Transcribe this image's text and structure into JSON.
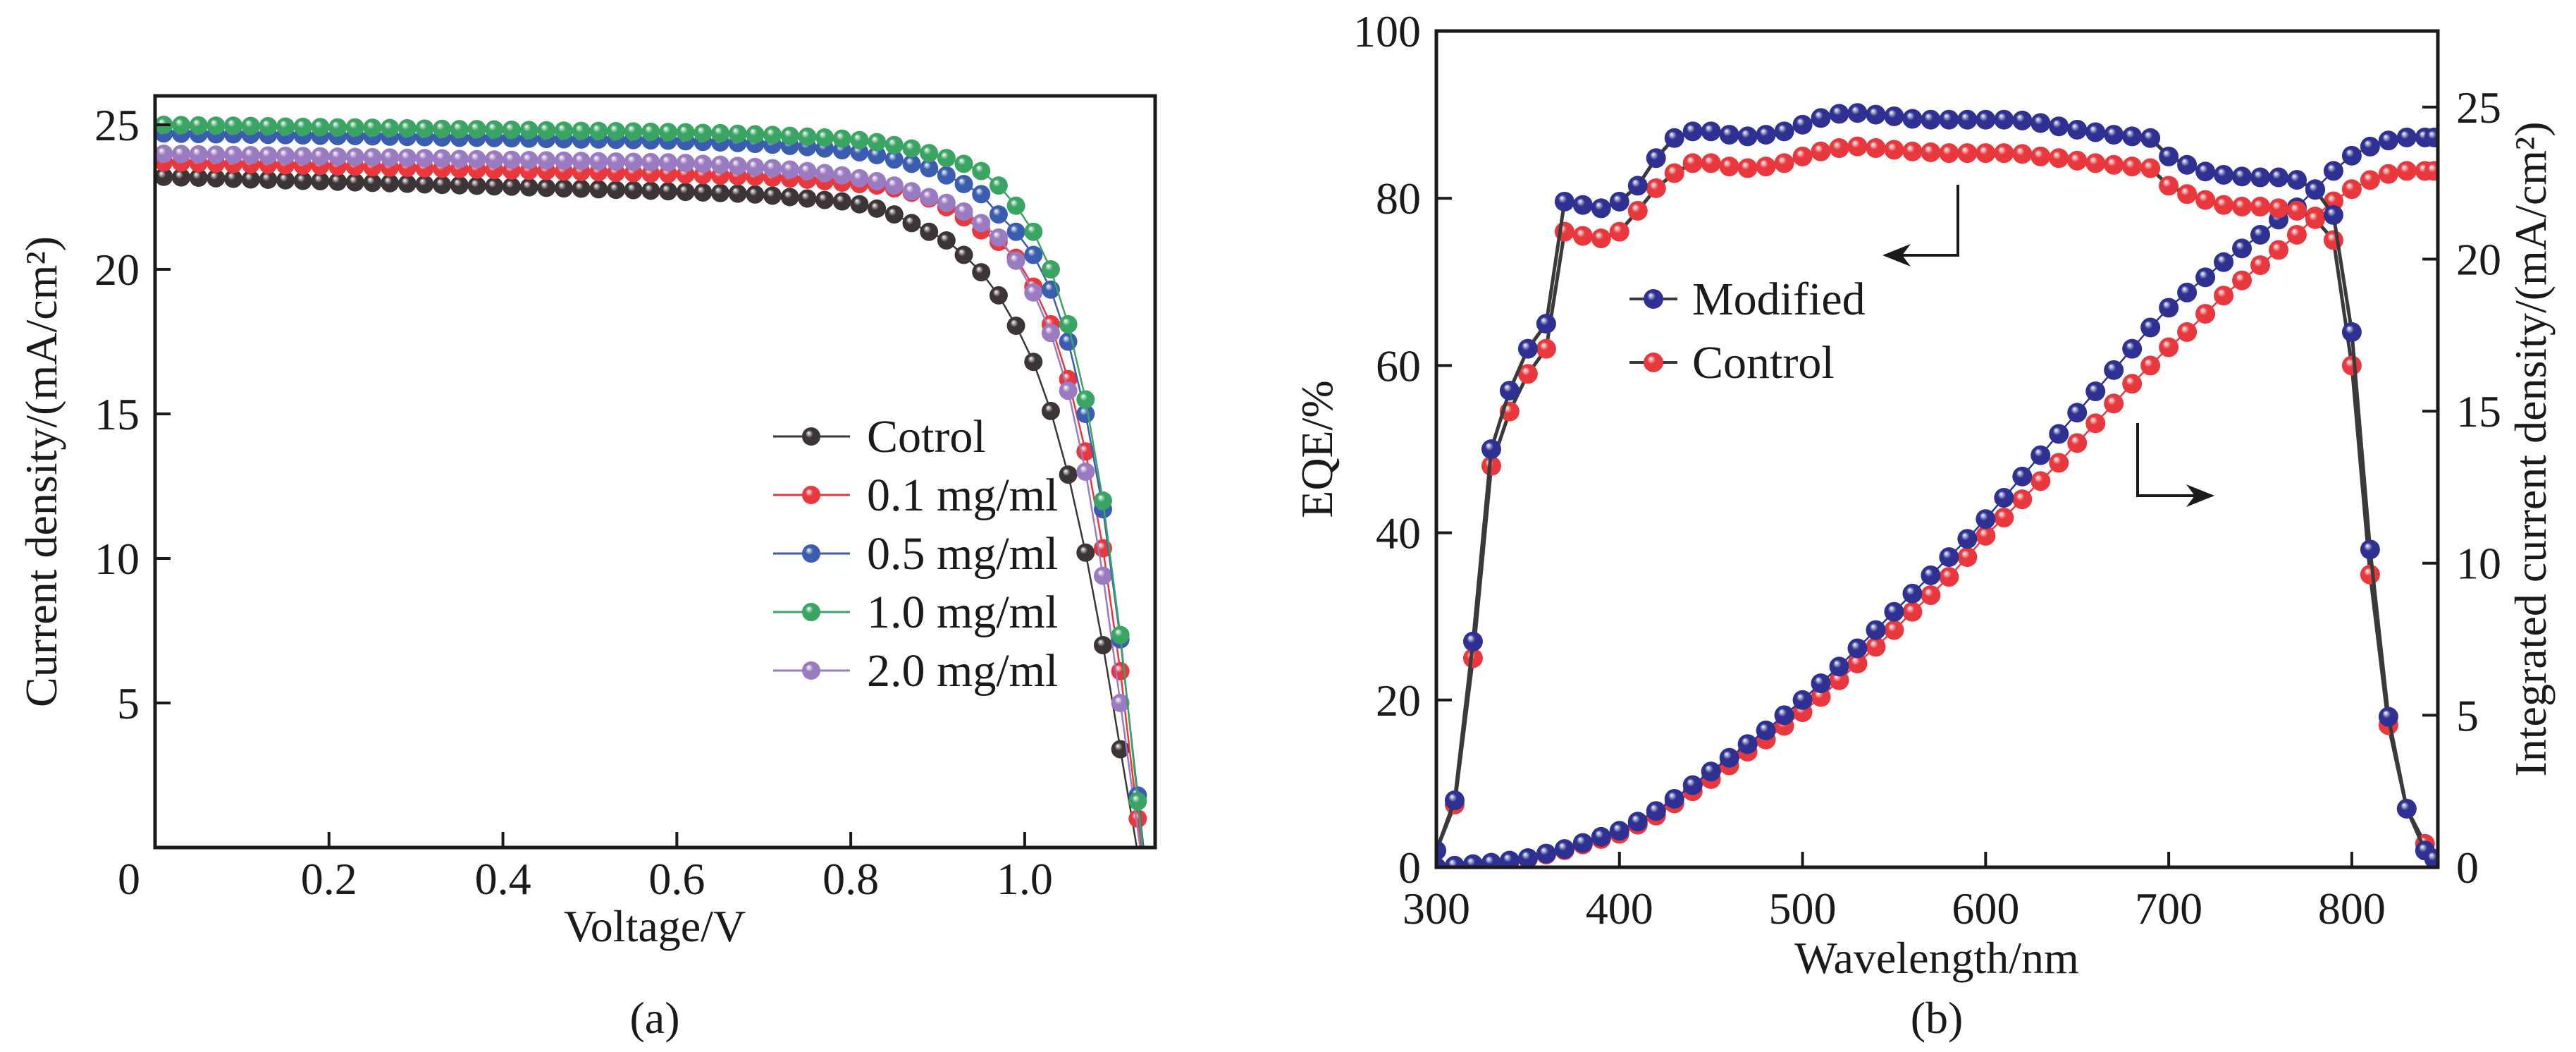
{
  "chart_data": [
    {
      "type": "line",
      "panel_label": "(a)",
      "title": "",
      "xlabel": "Voltage/V",
      "ylabel": "Current density/(mA/cm²)",
      "xlim": [
        0,
        1.15
      ],
      "ylim": [
        0,
        26
      ],
      "x_ticks": [
        0,
        0.2,
        0.4,
        0.6,
        0.8,
        1.0
      ],
      "x_tick_labels": [
        "0",
        "0.2",
        "0.4",
        "0.6",
        "0.8",
        "1.0"
      ],
      "y_ticks": [
        5,
        10,
        15,
        20,
        25
      ],
      "y_tick_labels": [
        "5",
        "10",
        "15",
        "20",
        "25"
      ],
      "grid": false,
      "legend_position": "center-right",
      "x": [
        0.01,
        0.03,
        0.05,
        0.07,
        0.09,
        0.11,
        0.13,
        0.15,
        0.17,
        0.19,
        0.21,
        0.23,
        0.25,
        0.27,
        0.29,
        0.31,
        0.33,
        0.35,
        0.37,
        0.39,
        0.41,
        0.43,
        0.45,
        0.47,
        0.49,
        0.51,
        0.53,
        0.55,
        0.57,
        0.59,
        0.61,
        0.63,
        0.65,
        0.67,
        0.69,
        0.71,
        0.73,
        0.75,
        0.77,
        0.79,
        0.81,
        0.83,
        0.85,
        0.87,
        0.89,
        0.91,
        0.93,
        0.95,
        0.97,
        0.99,
        1.01,
        1.03,
        1.05,
        1.07,
        1.09,
        1.11,
        1.13
      ],
      "series": [
        {
          "name": "Cotrol",
          "color": "#3d3535",
          "values": [
            23.2,
            23.18,
            23.17,
            23.15,
            23.13,
            23.11,
            23.1,
            23.08,
            23.06,
            23.05,
            23.03,
            23.01,
            22.99,
            22.98,
            22.96,
            22.94,
            22.92,
            22.91,
            22.89,
            22.87,
            22.86,
            22.84,
            22.82,
            22.8,
            22.79,
            22.77,
            22.75,
            22.74,
            22.72,
            22.7,
            22.68,
            22.66,
            22.64,
            22.62,
            22.59,
            22.55,
            22.5,
            22.45,
            22.4,
            22.35,
            22.25,
            22.1,
            21.9,
            21.6,
            21.3,
            21.0,
            20.5,
            19.9,
            19.1,
            18.05,
            16.8,
            15.1,
            12.9,
            10.2,
            7.0,
            3.4,
            null
          ]
        },
        {
          "name": "0.1 mg/ml",
          "color": "#e8383d",
          "values": [
            23.7,
            23.69,
            23.67,
            23.66,
            23.64,
            23.63,
            23.62,
            23.6,
            23.59,
            23.58,
            23.56,
            23.55,
            23.53,
            23.52,
            23.51,
            23.49,
            23.48,
            23.47,
            23.45,
            23.44,
            23.42,
            23.41,
            23.4,
            23.38,
            23.37,
            23.36,
            23.34,
            23.33,
            23.31,
            23.3,
            23.28,
            23.26,
            23.24,
            23.22,
            23.2,
            23.17,
            23.14,
            23.1,
            23.05,
            23.0,
            22.95,
            22.9,
            22.8,
            22.65,
            22.45,
            22.15,
            21.8,
            21.35,
            20.95,
            20.4,
            19.4,
            18.1,
            16.2,
            13.7,
            10.35,
            6.1,
            1.0
          ]
        },
        {
          "name": "0.5 mg/ml",
          "color": "#3a5db0",
          "values": [
            24.7,
            24.69,
            24.68,
            24.67,
            24.67,
            24.66,
            24.65,
            24.64,
            24.63,
            24.62,
            24.61,
            24.61,
            24.6,
            24.59,
            24.58,
            24.57,
            24.56,
            24.55,
            24.55,
            24.54,
            24.53,
            24.52,
            24.51,
            24.5,
            24.49,
            24.49,
            24.48,
            24.47,
            24.46,
            24.45,
            24.43,
            24.41,
            24.39,
            24.37,
            24.34,
            24.31,
            24.27,
            24.23,
            24.18,
            24.12,
            24.05,
            23.95,
            23.8,
            23.65,
            23.5,
            23.25,
            22.95,
            22.6,
            21.9,
            21.3,
            20.5,
            19.3,
            17.5,
            15.0,
            11.7,
            7.2,
            1.8
          ]
        },
        {
          "name": "1.0 mg/ml",
          "color": "#3aa463",
          "values": [
            25.0,
            24.99,
            24.98,
            24.97,
            24.97,
            24.96,
            24.95,
            24.94,
            24.93,
            24.92,
            24.91,
            24.91,
            24.9,
            24.89,
            24.88,
            24.87,
            24.86,
            24.85,
            24.85,
            24.84,
            24.83,
            24.82,
            24.81,
            24.8,
            24.79,
            24.79,
            24.78,
            24.77,
            24.76,
            24.75,
            24.74,
            24.72,
            24.71,
            24.69,
            24.67,
            24.65,
            24.62,
            24.59,
            24.56,
            24.52,
            24.47,
            24.4,
            24.3,
            24.18,
            24.02,
            23.85,
            23.65,
            23.4,
            22.9,
            22.2,
            21.3,
            20.0,
            18.1,
            15.5,
            12.0,
            7.35,
            1.6
          ]
        },
        {
          "name": "2.0 mg/ml",
          "color": "#9a7ac0",
          "values": [
            24.0,
            23.99,
            23.98,
            23.97,
            23.96,
            23.95,
            23.94,
            23.93,
            23.92,
            23.91,
            23.9,
            23.89,
            23.88,
            23.87,
            23.86,
            23.85,
            23.84,
            23.82,
            23.81,
            23.8,
            23.79,
            23.78,
            23.77,
            23.76,
            23.75,
            23.74,
            23.73,
            23.72,
            23.71,
            23.7,
            23.68,
            23.65,
            23.62,
            23.58,
            23.54,
            23.5,
            23.45,
            23.4,
            23.33,
            23.25,
            23.15,
            23.05,
            22.9,
            22.7,
            22.5,
            22.3,
            22.0,
            21.6,
            21.1,
            20.3,
            19.2,
            17.8,
            15.8,
            13.0,
            9.4,
            5.0,
            null
          ]
        }
      ]
    },
    {
      "type": "line",
      "panel_label": "(b)",
      "title": "",
      "xlabel": "Wavelength/nm",
      "ylabel": "EQE/%",
      "ylabel_right": "Integrated current density/(mA/cm²)",
      "xlim": [
        300,
        847
      ],
      "ylim": [
        0,
        100
      ],
      "ylim_right": [
        0,
        27.5
      ],
      "x_ticks": [
        300,
        400,
        500,
        600,
        700,
        800
      ],
      "x_tick_labels": [
        "300",
        "400",
        "500",
        "600",
        "700",
        "800"
      ],
      "y_ticks": [
        0,
        20,
        40,
        60,
        80,
        100
      ],
      "y_tick_labels": [
        "0",
        "20",
        "40",
        "60",
        "80",
        "100"
      ],
      "y_ticks_right": [
        0,
        5,
        10,
        15,
        20,
        25
      ],
      "y_tick_labels_right": [
        "0",
        "5",
        "10",
        "15",
        "20",
        "25"
      ],
      "grid": false,
      "legend_position": "upper-left",
      "annotations": [
        "arrow pointing left to EQE axis",
        "arrow pointing right to integrated current axis"
      ],
      "x": [
        300,
        310,
        320,
        330,
        340,
        350,
        360,
        370,
        380,
        390,
        400,
        410,
        420,
        430,
        440,
        450,
        460,
        470,
        480,
        490,
        500,
        510,
        520,
        530,
        540,
        550,
        560,
        570,
        580,
        590,
        600,
        610,
        620,
        630,
        640,
        650,
        660,
        670,
        680,
        690,
        700,
        710,
        720,
        730,
        740,
        750,
        760,
        770,
        780,
        790,
        800,
        810,
        820,
        830,
        840,
        845
      ],
      "legend": [
        {
          "name": "Modified",
          "color": "#2e3192"
        },
        {
          "name": "Control",
          "color": "#e8383d"
        }
      ],
      "series": [
        {
          "name": "Modified",
          "quantity": "EQE",
          "axis": "left",
          "color": "#2e3192",
          "values": [
            2,
            8,
            27,
            50,
            57,
            62,
            65,
            79.6,
            79.2,
            78.8,
            79.6,
            81.5,
            84.8,
            87.2,
            88,
            88,
            87.6,
            87.4,
            87.6,
            88,
            88.8,
            89.6,
            90.1,
            90.2,
            90,
            89.8,
            89.5,
            89.4,
            89.4,
            89.4,
            89.4,
            89.4,
            89.3,
            89,
            88.6,
            88.2,
            87.9,
            87.6,
            87.4,
            87.2,
            85,
            84,
            83.2,
            82.8,
            82.6,
            82.5,
            82.5,
            82.2,
            81,
            78,
            64,
            38,
            18,
            7,
            2,
            1
          ]
        },
        {
          "name": "Control",
          "quantity": "EQE",
          "axis": "left",
          "color": "#e8383d",
          "values": [
            2,
            7.5,
            25,
            48,
            54.5,
            59,
            62,
            76,
            75.5,
            75.2,
            76,
            78.5,
            81.2,
            83,
            84.2,
            84.2,
            83.8,
            83.6,
            83.8,
            84.2,
            85,
            85.6,
            86,
            86.2,
            86,
            85.8,
            85.6,
            85.5,
            85.4,
            85.4,
            85.4,
            85.4,
            85.3,
            85,
            84.8,
            84.5,
            84.2,
            84,
            83.8,
            83.6,
            81.5,
            80.5,
            79.8,
            79.2,
            79,
            79,
            78.8,
            78.5,
            77.5,
            75,
            60,
            35,
            17,
            7,
            2.8,
            1
          ]
        },
        {
          "name": "Modified",
          "quantity": "Integrated current density",
          "axis": "right",
          "color": "#2e3192",
          "values": [
            0,
            0.05,
            0.1,
            0.15,
            0.22,
            0.3,
            0.45,
            0.6,
            0.8,
            1.0,
            1.2,
            1.5,
            1.85,
            2.25,
            2.7,
            3.15,
            3.6,
            4.05,
            4.5,
            5.0,
            5.5,
            6.05,
            6.6,
            7.2,
            7.8,
            8.4,
            9.0,
            9.6,
            10.2,
            10.8,
            11.45,
            12.15,
            12.85,
            13.55,
            14.25,
            14.95,
            15.65,
            16.35,
            17.05,
            17.75,
            18.4,
            18.9,
            19.4,
            19.9,
            20.35,
            20.8,
            21.3,
            21.7,
            22.3,
            22.9,
            23.4,
            23.7,
            23.9,
            24.0,
            24.0,
            24.0
          ]
        },
        {
          "name": "Control",
          "quantity": "Integrated current density",
          "axis": "right",
          "color": "#e8383d",
          "values": [
            0,
            0.05,
            0.1,
            0.14,
            0.2,
            0.28,
            0.42,
            0.56,
            0.75,
            0.93,
            1.1,
            1.4,
            1.7,
            2.1,
            2.5,
            2.9,
            3.35,
            3.8,
            4.2,
            4.65,
            5.1,
            5.6,
            6.15,
            6.7,
            7.25,
            7.8,
            8.4,
            8.95,
            9.55,
            10.2,
            10.9,
            11.5,
            12.1,
            12.7,
            13.3,
            13.95,
            14.6,
            15.25,
            15.9,
            16.5,
            17.1,
            17.6,
            18.2,
            18.8,
            19.3,
            19.8,
            20.3,
            20.8,
            21.4,
            21.9,
            22.3,
            22.6,
            22.8,
            22.9,
            22.9,
            22.9
          ]
        }
      ]
    }
  ]
}
